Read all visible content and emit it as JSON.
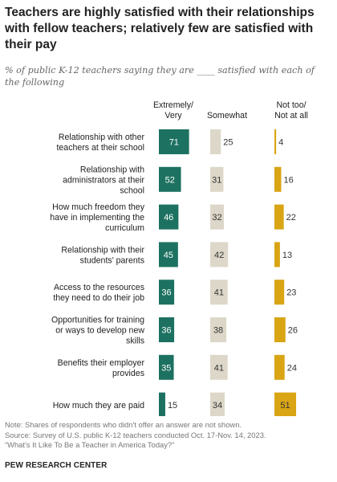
{
  "title": "Teachers are highly satisfied with their relationships with fellow teachers; relatively few are satisfied with their pay",
  "subtitle": "% of public K-12 teachers saying they are ____ satisfied with each of the following",
  "notes": [
    "Note: Shares of respondents who didn't offer an answer are not shown.",
    "Source: Survey of U.S. public K-12 teachers conducted Oct. 17-Nov. 14, 2023.",
    "“What's It Like To Be a Teacher in America Today?”"
  ],
  "brand": "PEW RESEARCH CENTER",
  "chart_data": {
    "type": "bar",
    "orientation": "horizontal",
    "stacking": "side-by-side columns",
    "categories": [
      [
        "Relationship with other",
        "teachers at their school"
      ],
      [
        "Relationship with",
        "administrators at their",
        "school"
      ],
      [
        "How much freedom they",
        "have in implementing the",
        "curriculum"
      ],
      [
        "Relationship with their",
        "students' parents"
      ],
      [
        "Access to the resources",
        "they need to do their job"
      ],
      [
        "Opportunities for training",
        "or ways to develop new",
        "skills"
      ],
      [
        "Benefits their employer",
        "provides"
      ],
      [
        "How much they are paid"
      ]
    ],
    "series": [
      {
        "name": [
          "Extremely/",
          "Very"
        ],
        "color": "#1d7160",
        "label_color": "#ffffff",
        "values": [
          71,
          52,
          46,
          45,
          36,
          36,
          35,
          15
        ]
      },
      {
        "name": [
          "Somewhat"
        ],
        "color": "#dcd7c8",
        "label_color": "#333333",
        "values": [
          25,
          31,
          32,
          42,
          41,
          38,
          41,
          34
        ]
      },
      {
        "name": [
          "Not too/",
          "Not at all"
        ],
        "color": "#d9a514",
        "label_color": "#333333",
        "values": [
          4,
          16,
          22,
          13,
          23,
          26,
          24,
          51
        ]
      }
    ],
    "xlim": [
      0,
      100
    ],
    "legend": "column headers above bars"
  }
}
